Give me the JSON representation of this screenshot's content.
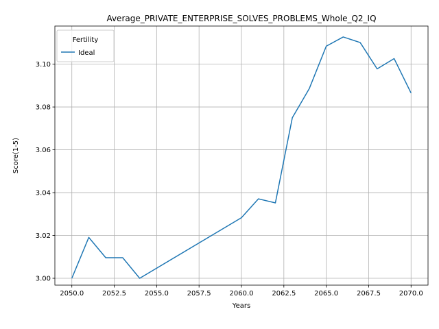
{
  "chart_data": {
    "type": "line",
    "title": "Average_PRIVATE_ENTERPRISE_SOLVES_PROBLEMS_Whole_Q2_IQ",
    "xlabel": "Years",
    "ylabel": "Score(1-5)",
    "xlim": [
      2049,
      2071
    ],
    "ylim": [
      2.9968,
      3.1178
    ],
    "xticks": [
      2050.0,
      2052.5,
      2055.0,
      2057.5,
      2060.0,
      2062.5,
      2065.0,
      2067.5,
      2070.0
    ],
    "xtick_labels": [
      "2050.0",
      "2052.5",
      "2055.0",
      "2057.5",
      "2060.0",
      "2062.5",
      "2065.0",
      "2067.5",
      "2070.0"
    ],
    "yticks": [
      3.0,
      3.02,
      3.04,
      3.06,
      3.08,
      3.1
    ],
    "ytick_labels": [
      "3.00",
      "3.02",
      "3.04",
      "3.06",
      "3.08",
      "3.10"
    ],
    "grid": true,
    "legend": {
      "title": "Fertility",
      "placement": "top-left"
    },
    "series": [
      {
        "name": "Ideal",
        "color": "#1f77b4",
        "x": [
          2050,
          2051,
          2052,
          2053,
          2054,
          2060,
          2061,
          2062,
          2063,
          2064,
          2065,
          2066,
          2067,
          2068,
          2069,
          2070
        ],
        "y": [
          3.0,
          3.0191,
          3.0096,
          3.0096,
          3.0,
          3.0283,
          3.0371,
          3.0352,
          3.075,
          3.0886,
          3.1084,
          3.1127,
          3.1101,
          3.0978,
          3.1026,
          3.0865
        ]
      }
    ]
  }
}
